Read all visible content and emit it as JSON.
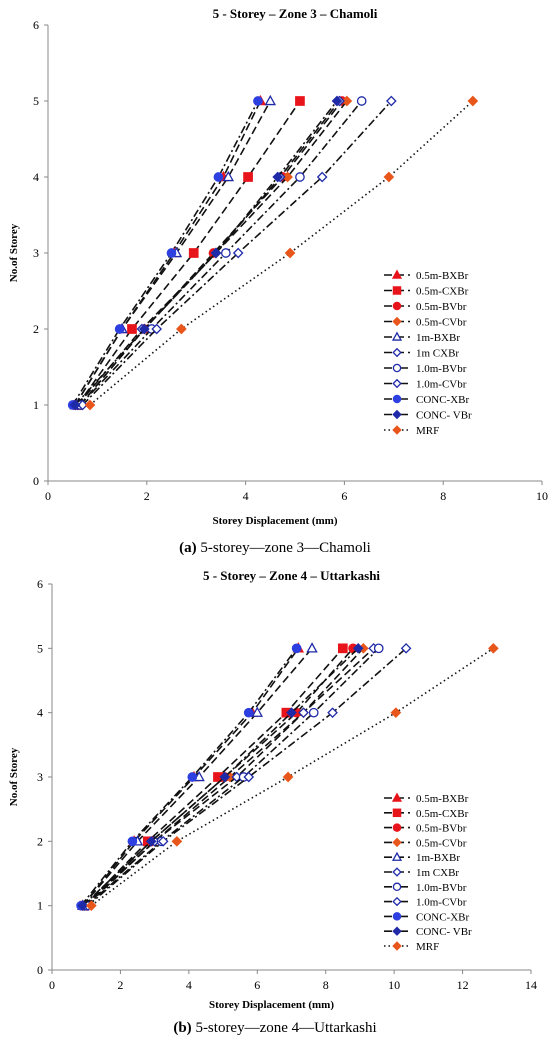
{
  "chart_data": [
    {
      "type": "line",
      "title": "5 - Storey – Zone 3 – Chamoli",
      "xlabel": "Storey Displacement (mm)",
      "ylabel": "No.of Storey",
      "xlim": [
        0,
        10
      ],
      "ylim": [
        0,
        6
      ],
      "xticks": [
        0,
        2,
        4,
        6,
        8,
        10
      ],
      "yticks": [
        0,
        1,
        2,
        3,
        4,
        5,
        6
      ],
      "grid": false,
      "legend_position": "right",
      "caption_letter": "(a)",
      "caption_text": " 5-storey—zone 3—Chamoli",
      "series": [
        {
          "name": "0.5m-BXBr",
          "color": "#e8141b",
          "marker": "triangle",
          "dash": "dash",
          "x": [
            0.55,
            1.5,
            2.55,
            3.55,
            4.3
          ],
          "y": [
            1,
            2,
            3,
            4,
            5
          ]
        },
        {
          "name": "0.5m-CXBr",
          "color": "#e8141b",
          "marker": "square",
          "dash": "dash",
          "x": [
            0.6,
            1.7,
            2.95,
            4.05,
            5.1
          ],
          "y": [
            1,
            2,
            3,
            4,
            5
          ]
        },
        {
          "name": "0.5m-BVbr",
          "color": "#e8141b",
          "marker": "circle",
          "dash": "dash",
          "x": [
            0.65,
            1.95,
            3.35,
            4.75,
            5.95
          ],
          "y": [
            1,
            2,
            3,
            4,
            5
          ]
        },
        {
          "name": "0.5m-CVbr",
          "color": "#e8561b",
          "marker": "diamond",
          "dash": "dash",
          "x": [
            0.65,
            1.95,
            3.4,
            4.85,
            6.05
          ],
          "y": [
            1,
            2,
            3,
            4,
            5
          ]
        },
        {
          "name": "1m-BXBr",
          "color": "#1f2aa8",
          "marker": "triangle-open",
          "dash": "dash",
          "x": [
            0.55,
            1.5,
            2.6,
            3.65,
            4.5
          ],
          "y": [
            1,
            2,
            3,
            4,
            5
          ]
        },
        {
          "name": "1m CXBr",
          "color": "#1f2aa8",
          "marker": "diamond-open",
          "dash": "dash",
          "x": [
            0.6,
            1.9,
            3.4,
            4.7,
            5.9
          ],
          "y": [
            1,
            2,
            3,
            4,
            5
          ]
        },
        {
          "name": "1.0m-BVbr",
          "color": "#1f2aa8",
          "marker": "circle-open",
          "dash": "dashdot",
          "x": [
            0.65,
            2.1,
            3.6,
            5.1,
            6.35
          ],
          "y": [
            1,
            2,
            3,
            4,
            5
          ]
        },
        {
          "name": "1.0m-CVbr",
          "color": "#1f2aa8",
          "marker": "diamond-open",
          "dash": "dashdot",
          "x": [
            0.7,
            2.2,
            3.85,
            5.55,
            6.95
          ],
          "y": [
            1,
            2,
            3,
            4,
            5
          ]
        },
        {
          "name": "CONC-XBr",
          "color": "#2d3fe0",
          "marker": "circle",
          "dash": "dashdot",
          "x": [
            0.5,
            1.45,
            2.5,
            3.45,
            4.25
          ],
          "y": [
            1,
            2,
            3,
            4,
            5
          ]
        },
        {
          "name": "CONC- VBr",
          "color": "#1f2aa8",
          "marker": "diamond",
          "dash": "dashdot",
          "x": [
            0.55,
            1.95,
            3.4,
            4.65,
            5.85
          ],
          "y": [
            1,
            2,
            3,
            4,
            5
          ]
        },
        {
          "name": "MRF",
          "color": "#e8561b",
          "marker": "diamond",
          "dash": "dot",
          "x": [
            0.85,
            2.7,
            4.9,
            6.9,
            8.6
          ],
          "y": [
            1,
            2,
            3,
            4,
            5
          ]
        }
      ]
    },
    {
      "type": "line",
      "title": "5 - Storey  – Zone 4 – Uttarkashi",
      "xlabel": "Storey Displacement (mm)",
      "ylabel": "No.of Storey",
      "xlim": [
        0,
        14
      ],
      "ylim": [
        0,
        6
      ],
      "xticks": [
        0,
        2,
        4,
        6,
        8,
        10,
        12,
        14
      ],
      "yticks": [
        0,
        1,
        2,
        3,
        4,
        5,
        6
      ],
      "grid": false,
      "legend_position": "right",
      "caption_letter": "(b)",
      "caption_text": " 5-storey—zone 4—Uttarkashi",
      "series": [
        {
          "name": "0.5m-BXBr",
          "color": "#e8141b",
          "marker": "triangle",
          "dash": "dash",
          "x": [
            0.9,
            2.4,
            4.15,
            5.85,
            7.2
          ],
          "y": [
            1,
            2,
            3,
            4,
            5
          ]
        },
        {
          "name": "0.5m-CXBr",
          "color": "#e8141b",
          "marker": "square",
          "dash": "dash",
          "x": [
            0.95,
            2.8,
            4.85,
            6.85,
            8.5
          ],
          "y": [
            1,
            2,
            3,
            4,
            5
          ]
        },
        {
          "name": "0.5m-BVbr",
          "color": "#e8141b",
          "marker": "circle",
          "dash": "dash",
          "x": [
            0.95,
            2.9,
            5.05,
            7.15,
            8.8
          ],
          "y": [
            1,
            2,
            3,
            4,
            5
          ]
        },
        {
          "name": "0.5m-CVbr",
          "color": "#e8561b",
          "marker": "diamond",
          "dash": "dash",
          "x": [
            1.0,
            3.0,
            5.2,
            7.35,
            9.1
          ],
          "y": [
            1,
            2,
            3,
            4,
            5
          ]
        },
        {
          "name": "1m-BXBr",
          "color": "#1f2aa8",
          "marker": "triangle-open",
          "dash": "dash",
          "x": [
            0.9,
            2.5,
            4.3,
            6.0,
            7.6
          ],
          "y": [
            1,
            2,
            3,
            4,
            5
          ]
        },
        {
          "name": "1m CXBr",
          "color": "#1f2aa8",
          "marker": "diamond-open",
          "dash": "dash",
          "x": [
            0.95,
            3.0,
            5.4,
            7.35,
            9.4
          ],
          "y": [
            1,
            2,
            3,
            4,
            5
          ]
        },
        {
          "name": "1.0m-BVbr",
          "color": "#1f2aa8",
          "marker": "circle-open",
          "dash": "dashdot",
          "x": [
            1.0,
            3.2,
            5.6,
            7.65,
            9.55
          ],
          "y": [
            1,
            2,
            3,
            4,
            5
          ]
        },
        {
          "name": "1.0m-CVbr",
          "color": "#1f2aa8",
          "marker": "diamond-open",
          "dash": "dashdot",
          "x": [
            1.05,
            3.25,
            5.75,
            8.2,
            10.35
          ],
          "y": [
            1,
            2,
            3,
            4,
            5
          ]
        },
        {
          "name": "CONC-XBr",
          "color": "#2d3fe0",
          "marker": "circle",
          "dash": "dashdot",
          "x": [
            0.85,
            2.35,
            4.1,
            5.75,
            7.15
          ],
          "y": [
            1,
            2,
            3,
            4,
            5
          ]
        },
        {
          "name": "CONC- VBr",
          "color": "#1f2aa8",
          "marker": "diamond",
          "dash": "dashdot",
          "x": [
            0.9,
            2.9,
            5.05,
            7.0,
            8.95
          ],
          "y": [
            1,
            2,
            3,
            4,
            5
          ]
        },
        {
          "name": "MRF",
          "color": "#e8561b",
          "marker": "diamond",
          "dash": "dot",
          "x": [
            1.15,
            3.65,
            6.9,
            10.05,
            12.9
          ],
          "y": [
            1,
            2,
            3,
            4,
            5
          ]
        }
      ]
    }
  ]
}
